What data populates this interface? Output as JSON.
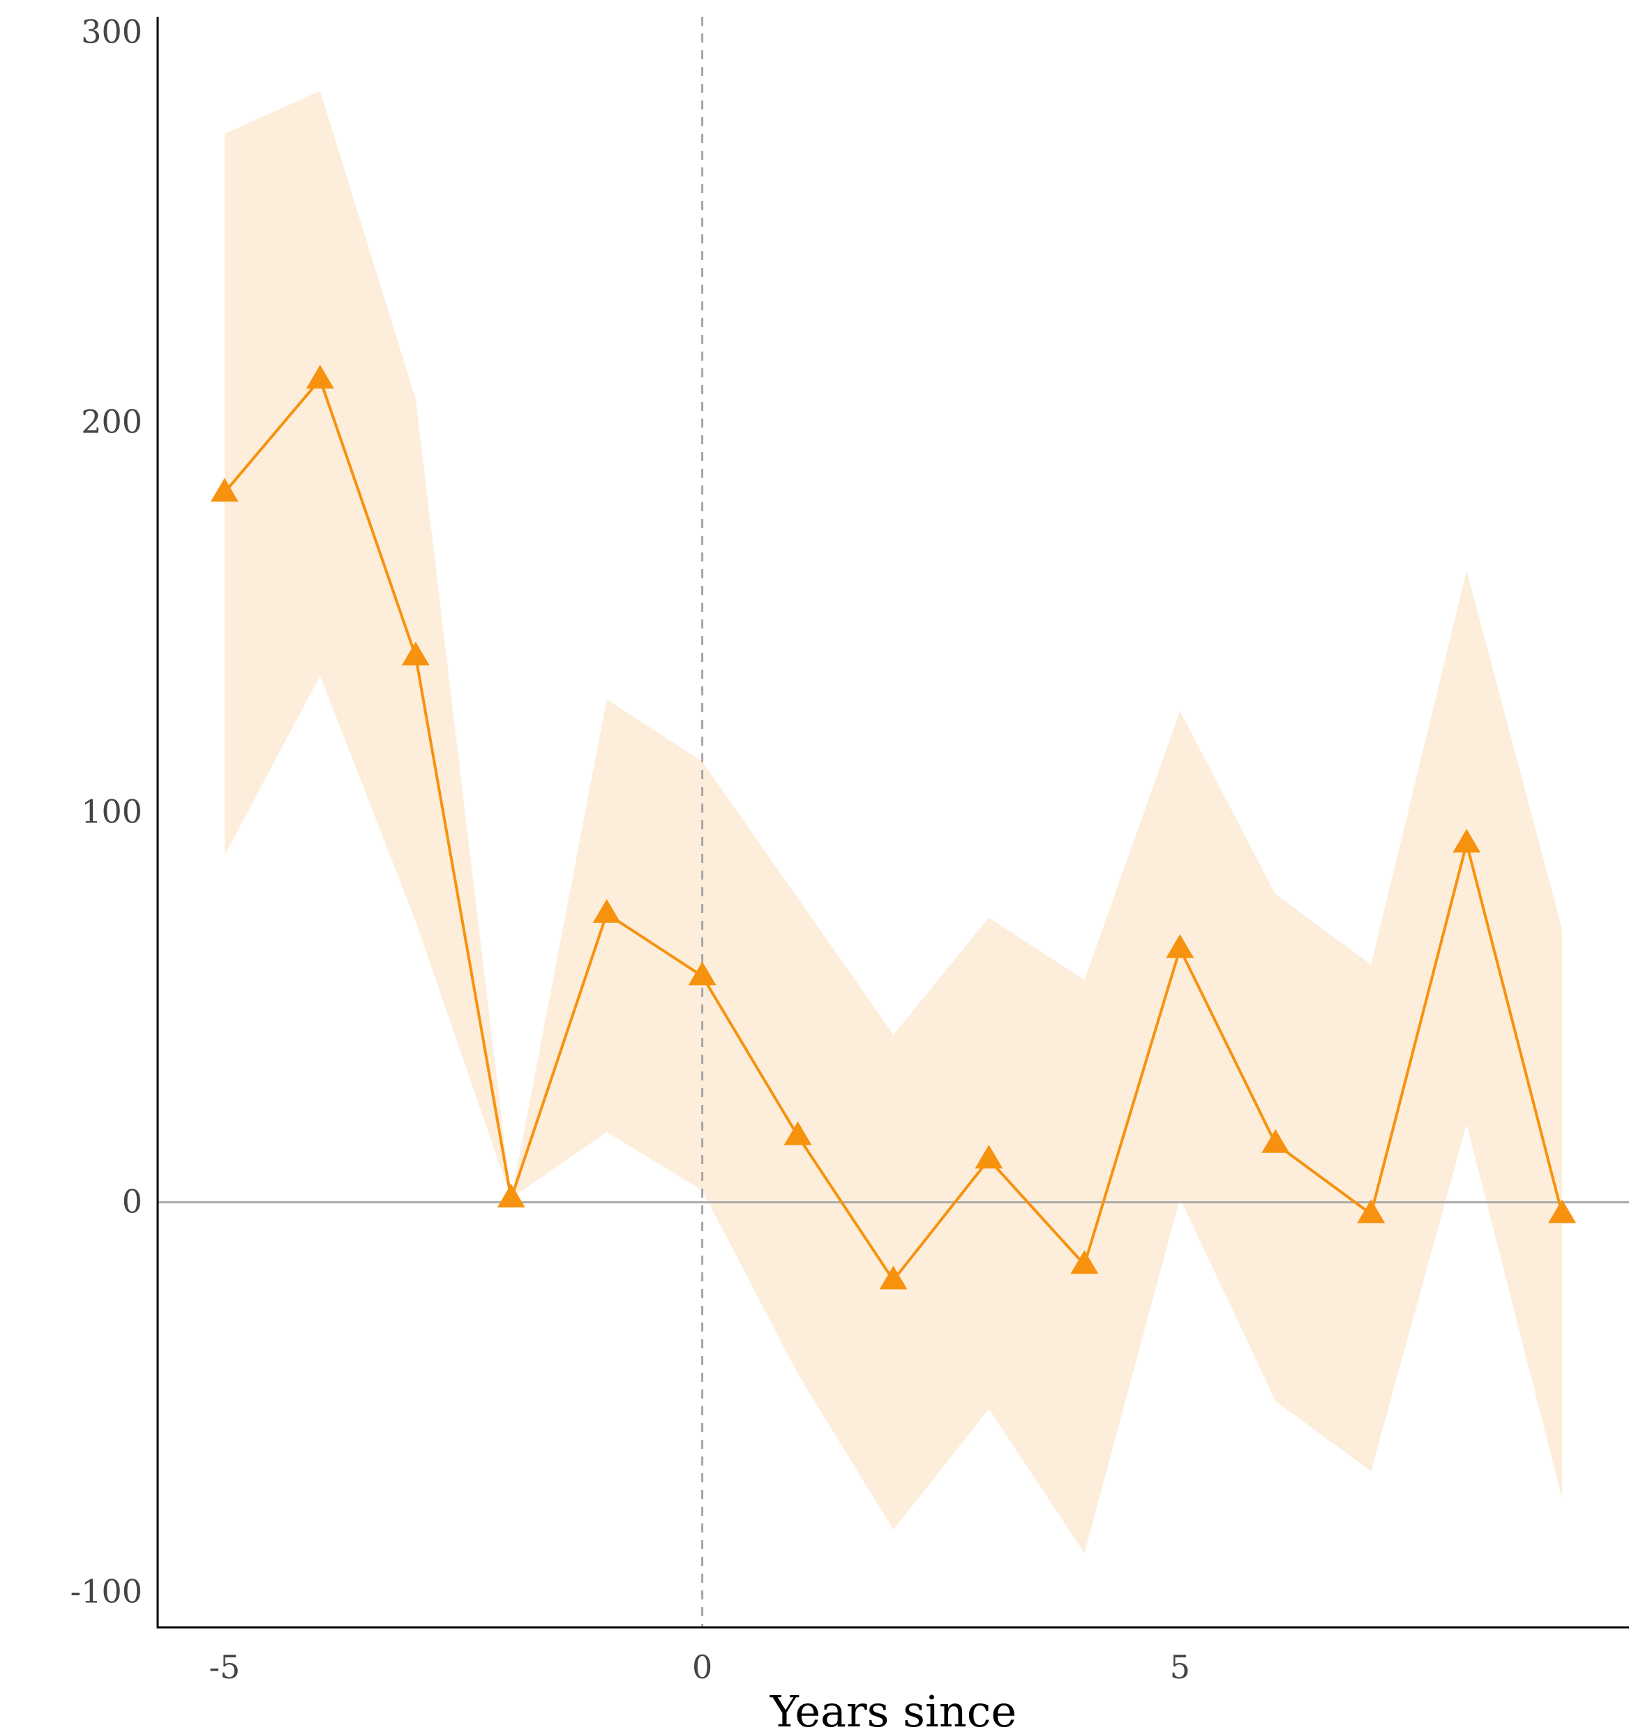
{
  "chart_data": {
    "type": "line",
    "title": "",
    "xlabel": "Years since",
    "ylabel": "",
    "xlim": [
      -5.7,
      9.7
    ],
    "ylim": [
      -109,
      304
    ],
    "x_ticks": [
      -5,
      0,
      5
    ],
    "x_tick_labels": [
      "-5",
      "0",
      "5"
    ],
    "y_ticks": [
      -100,
      0,
      100,
      200,
      300
    ],
    "y_tick_labels": [
      "-100",
      "0",
      "100",
      "200",
      "300"
    ],
    "grid": false,
    "legend": "none",
    "reference_lines": {
      "horizontal_y": 0,
      "vertical_x": 0
    },
    "series": [
      {
        "x": [
          -5,
          -4,
          -3,
          -2,
          -1,
          0,
          1,
          2,
          3,
          4,
          5,
          6,
          7,
          8,
          9
        ],
        "y": [
          182,
          211,
          140,
          1,
          74,
          58,
          17,
          -20,
          11,
          -16,
          65,
          15,
          -3,
          92,
          -3
        ],
        "ci_upper": [
          274,
          285,
          206,
          1,
          129,
          113,
          78,
          43,
          73,
          57,
          126,
          79,
          61,
          162,
          70
        ],
        "ci_lower": [
          89,
          135,
          72,
          1,
          18,
          3,
          -44,
          -84,
          -53,
          -90,
          1,
          -51,
          -69,
          20,
          -76
        ],
        "marker": "triangle"
      }
    ],
    "colors": {
      "line": "#F7920E",
      "marker": "#F7920E",
      "band": "#FDEEDC",
      "zero_line": "#AAAAAA",
      "vline": "#A6A6A6",
      "axis": "#000000"
    }
  }
}
